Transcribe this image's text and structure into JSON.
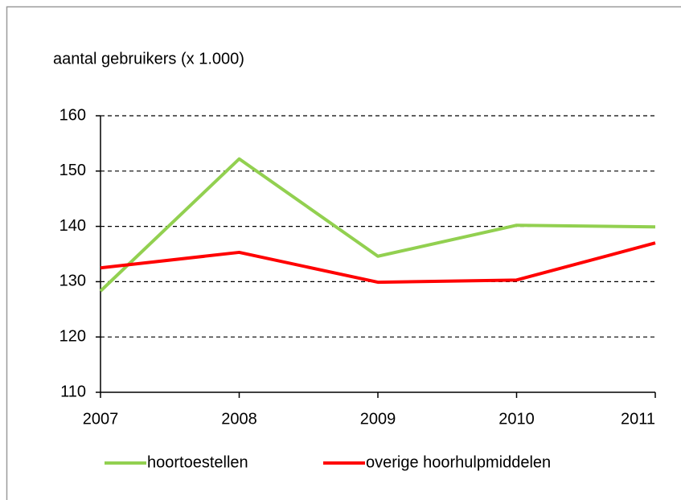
{
  "chart_data": {
    "type": "line",
    "title": "aantal gebruikers (x 1.000)",
    "x": [
      2007,
      2008,
      2009,
      2010,
      2011
    ],
    "xlim": [
      2007,
      2011
    ],
    "xticks": [
      2007,
      2008,
      2009,
      2010,
      2011
    ],
    "ylim": [
      110,
      160
    ],
    "yticks": [
      110,
      120,
      130,
      140,
      150,
      160
    ],
    "grid": true,
    "legend": "bottom",
    "series": [
      {
        "name": "hoortoestellen",
        "color": "#92d050",
        "values": [
          128.3,
          152.2,
          134.6,
          140.2,
          139.9
        ]
      },
      {
        "name": "overige hoorhulpmiddelen",
        "color": "#ff0000",
        "values": [
          132.5,
          135.3,
          129.9,
          130.3,
          137.0
        ]
      }
    ]
  }
}
